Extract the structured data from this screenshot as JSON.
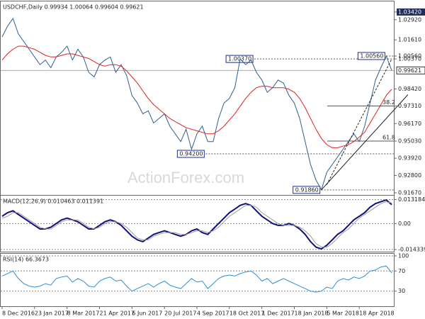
{
  "chart_data": [
    {
      "type": "line",
      "title": "USDCHF,Daily  0.99934 1.00064 0.99604 0.99621",
      "watermark": "ActionForex.com",
      "ylim": [
        0.9153,
        1.0397
      ],
      "yticks": [
        {
          "value": 1.0342,
          "label": "1.03420"
        },
        {
          "value": 1.0292,
          "label": "1.02920"
        },
        {
          "value": 1.0161,
          "label": "1.01610"
        },
        {
          "value": 1.0056,
          "label": "1.00560"
        },
        {
          "value": 1.0037,
          "label": "1.00370"
        },
        {
          "value": 0.9842,
          "label": "0.98420"
        },
        {
          "value": 0.9731,
          "label": "0.97310"
        },
        {
          "value": 0.9617,
          "label": "0.96170"
        },
        {
          "value": 0.9503,
          "label": "0.95030"
        },
        {
          "value": 0.9392,
          "label": "0.93920"
        },
        {
          "value": 0.928,
          "label": "0.92800"
        },
        {
          "value": 0.9167,
          "label": "0.91670"
        }
      ],
      "current_price": {
        "value": 0.99621,
        "label": "0.99621"
      },
      "x_labels": [
        "8 Dec 2016",
        "23 Jan 2017",
        "8 Mar 2017",
        "21 Apr 2017",
        "6 Jun 2017",
        "20 Jul 2017",
        "4 Sep 2017",
        "18 Oct 2017",
        "1 Dec 2017",
        "18 Jan 2018",
        "5 Mar 2018",
        "18 Apr 2018"
      ],
      "series": [
        {
          "name": "USDCHF",
          "color": "#2f5f8f",
          "values": [
            1.018,
            1.025,
            1.03,
            1.02,
            1.015,
            1.01,
            1.005,
            1.0,
            1.003,
            0.998,
            1.005,
            1.008,
            1.012,
            1.003,
            1.01,
            1.005,
            0.995,
            0.992,
            1.0,
            1.003,
            1.005,
            0.995,
            1.0,
            0.993,
            0.98,
            0.975,
            0.968,
            0.97,
            0.962,
            0.965,
            0.968,
            0.96,
            0.955,
            0.95,
            0.958,
            0.945,
            0.955,
            0.96,
            0.95,
            0.95,
            0.965,
            0.975,
            0.978,
            0.985,
            1.0037,
            1.0,
            1.003,
            0.995,
            0.99,
            0.982,
            0.985,
            0.99,
            0.988,
            0.98,
            0.975,
            0.965,
            0.95,
            0.935,
            0.925,
            0.9186,
            0.93,
            0.935,
            0.94,
            0.945,
            0.95,
            0.955,
            0.95,
            0.96,
            0.975,
            0.99,
            0.998,
            1.0056,
            0.99621
          ]
        },
        {
          "name": "MA",
          "color": "#e02020",
          "values": [
            1.003,
            1.007,
            1.01,
            1.012,
            1.012,
            1.011,
            1.01,
            1.008,
            1.006,
            1.005,
            1.005,
            1.006,
            1.007,
            1.007,
            1.006,
            1.005,
            1.004,
            1.002,
            1.0,
            0.999,
            1.0,
            1.0,
            0.999,
            0.996,
            0.992,
            0.988,
            0.983,
            0.978,
            0.974,
            0.971,
            0.968,
            0.965,
            0.963,
            0.961,
            0.959,
            0.958,
            0.957,
            0.956,
            0.955,
            0.955,
            0.957,
            0.96,
            0.964,
            0.968,
            0.973,
            0.978,
            0.982,
            0.985,
            0.986,
            0.986,
            0.985,
            0.985,
            0.985,
            0.984,
            0.982,
            0.978,
            0.972,
            0.965,
            0.958,
            0.952,
            0.948,
            0.946,
            0.946,
            0.947,
            0.948,
            0.95,
            0.953,
            0.956,
            0.962,
            0.968,
            0.974,
            0.98,
            0.984
          ]
        }
      ],
      "annotations": [
        {
          "label": "1.00370",
          "x": 44,
          "value": 1.0037
        },
        {
          "label": "0.94200",
          "x": 35,
          "value": 0.942
        },
        {
          "label": "0.91860",
          "x": 59,
          "value": 0.9186
        },
        {
          "label": "1.00560",
          "x": 71,
          "value": 1.0056
        }
      ],
      "fib_levels": [
        {
          "label": "38.2",
          "value": 0.9731
        },
        {
          "label": "61.8",
          "value": 0.9503
        }
      ],
      "trendlines": [
        {
          "x": [
            59,
            75
          ],
          "values": [
            0.9186,
            0.9805
          ]
        },
        {
          "x": [
            60,
            72
          ],
          "values": [
            0.922,
            1.0036
          ],
          "dashed": true
        }
      ]
    },
    {
      "type": "line",
      "title": "MACD(12,26,9) 0.010463 0.011391",
      "ylim": [
        -0.0155,
        0.0142
      ],
      "yticks": [
        {
          "value": 0.013184,
          "label": "0.013184"
        },
        {
          "value": 0,
          "label": "0.00"
        },
        {
          "value": -0.014339,
          "label": "-0.014339"
        }
      ],
      "series": [
        {
          "name": "MACD",
          "color": "#10107a",
          "values": [
            0.004,
            0.006,
            0.007,
            0.005,
            0.003,
            0.001,
            -0.001,
            -0.003,
            -0.003,
            -0.002,
            0.0,
            0.002,
            0.003,
            0.002,
            0.001,
            -0.001,
            -0.003,
            -0.003,
            -0.001,
            0.001,
            0.002,
            0.001,
            -0.001,
            -0.004,
            -0.007,
            -0.009,
            -0.01,
            -0.008,
            -0.006,
            -0.005,
            -0.004,
            -0.005,
            -0.006,
            -0.007,
            -0.006,
            -0.004,
            -0.003,
            -0.005,
            -0.006,
            -0.003,
            0.0,
            0.003,
            0.006,
            0.008,
            0.01,
            0.011,
            0.01,
            0.007,
            0.004,
            0.002,
            0.0,
            -0.001,
            -0.001,
            0.0,
            -0.001,
            -0.003,
            -0.006,
            -0.01,
            -0.013,
            -0.014,
            -0.012,
            -0.009,
            -0.006,
            -0.004,
            -0.001,
            0.002,
            0.004,
            0.006,
            0.009,
            0.011,
            0.012,
            0.013,
            0.010463
          ]
        },
        {
          "name": "Signal",
          "color": "#9a9a9a",
          "values": [
            0.003,
            0.004,
            0.006,
            0.006,
            0.004,
            0.002,
            0.0,
            -0.002,
            -0.003,
            -0.003,
            -0.001,
            0.001,
            0.002,
            0.002,
            0.002,
            0.0,
            -0.002,
            -0.003,
            -0.002,
            0.0,
            0.001,
            0.001,
            0.0,
            -0.002,
            -0.005,
            -0.008,
            -0.009,
            -0.009,
            -0.007,
            -0.006,
            -0.005,
            -0.005,
            -0.005,
            -0.006,
            -0.006,
            -0.005,
            -0.004,
            -0.004,
            -0.005,
            -0.004,
            -0.002,
            0.001,
            0.004,
            0.006,
            0.008,
            0.01,
            0.01,
            0.009,
            0.006,
            0.004,
            0.002,
            0.0,
            -0.001,
            -0.001,
            -0.001,
            -0.002,
            -0.004,
            -0.007,
            -0.011,
            -0.013,
            -0.013,
            -0.011,
            -0.008,
            -0.005,
            -0.003,
            0.0,
            0.003,
            0.005,
            0.007,
            0.009,
            0.011,
            0.012,
            0.011391
          ]
        }
      ]
    },
    {
      "type": "line",
      "title": "RSI(14) 66.3673",
      "ylim": [
        0,
        100
      ],
      "yticks": [
        100,
        70,
        30
      ],
      "series": [
        {
          "name": "RSI",
          "color": "#2b8fd8",
          "values": [
            60,
            65,
            70,
            55,
            45,
            40,
            38,
            40,
            45,
            42,
            55,
            58,
            60,
            48,
            55,
            50,
            40,
            38,
            50,
            55,
            58,
            50,
            52,
            40,
            30,
            35,
            40,
            45,
            38,
            45,
            50,
            42,
            38,
            35,
            45,
            55,
            48,
            50,
            35,
            45,
            55,
            60,
            62,
            60,
            65,
            68,
            70,
            62,
            50,
            55,
            45,
            50,
            55,
            50,
            45,
            40,
            35,
            30,
            28,
            30,
            38,
            35,
            50,
            55,
            52,
            58,
            55,
            60,
            70,
            72,
            78,
            80,
            66.3673
          ]
        }
      ]
    }
  ]
}
